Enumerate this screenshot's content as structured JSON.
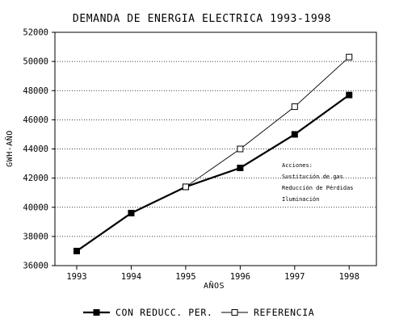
{
  "chart_data": {
    "type": "line",
    "title": "DEMANDA DE ENERGIA ELECTRICA 1993-1998",
    "xlabel": "AÑOS",
    "ylabel": "GWH-AÑO",
    "x": [
      1993,
      1994,
      1995,
      1996,
      1997,
      1998
    ],
    "xlim": [
      1992.6,
      1998.5
    ],
    "ylim": [
      36000,
      52000
    ],
    "yticks": [
      36000,
      38000,
      40000,
      42000,
      44000,
      46000,
      48000,
      50000,
      52000
    ],
    "grid": "horizontal dotted",
    "legend_position": "bottom",
    "series": [
      {
        "name": "CON REDUCC. PER.",
        "values": [
          37000,
          39600,
          41400,
          42700,
          45000,
          47700
        ],
        "marker": "filled-square",
        "color": "#000000"
      },
      {
        "name": "REFERENCIA",
        "x": [
          1995,
          1996,
          1997,
          1998
        ],
        "values": [
          41400,
          44000,
          46900,
          50300
        ],
        "marker": "open-square",
        "color": "#000000"
      }
    ],
    "annotation": {
      "lines": [
        "Acciones:",
        "Sustitución de gas",
        "Reducción de Pérdidas",
        "Iluminación"
      ]
    }
  }
}
